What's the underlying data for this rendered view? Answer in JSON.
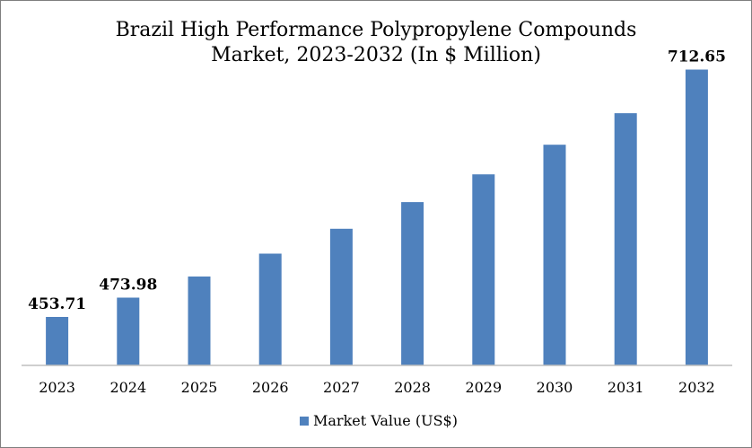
{
  "chart_data": {
    "type": "bar",
    "title_lines": [
      "Brazil High Performance Polypropylene Compounds",
      "Market, 2023-2032 (In $ Million)"
    ],
    "categories": [
      "2023",
      "2024",
      "2025",
      "2026",
      "2027",
      "2028",
      "2029",
      "2030",
      "2031",
      "2032"
    ],
    "series": [
      {
        "name": "Market Value (US$)",
        "color": "#4f81bd",
        "values": [
          453.71,
          473.98,
          496.0,
          520.0,
          546.0,
          574.0,
          603.0,
          634.0,
          667.0,
          712.65
        ]
      }
    ],
    "data_labels": {
      "2023": "453.71",
      "2024": "473.98",
      "2032": "712.65"
    },
    "ylim": [
      403,
      731
    ],
    "grid": false,
    "legend_position": "bottom"
  }
}
